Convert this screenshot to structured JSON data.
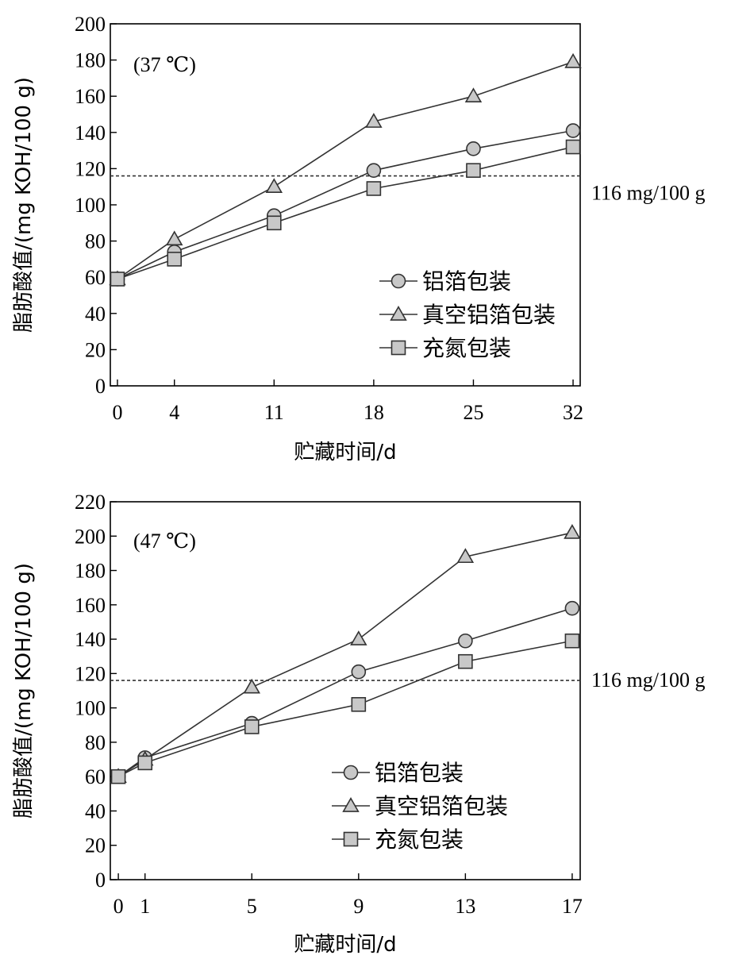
{
  "chart_data": [
    {
      "type": "line",
      "annotation": "(37 ℃)",
      "xlabel": "贮藏时间/d",
      "ylabel": "脂肪酸值/(mg KOH/100 g)",
      "xlim": [
        -0.5,
        32.5
      ],
      "ylim": [
        0,
        200
      ],
      "x": [
        0,
        4,
        11,
        18,
        25,
        32
      ],
      "x_ticks": [
        0,
        4,
        11,
        18,
        25,
        32
      ],
      "y_ticks": [
        0,
        20,
        40,
        60,
        80,
        100,
        120,
        140,
        160,
        180,
        200
      ],
      "reference_line": {
        "value": 116,
        "label": "116 mg/100 g"
      },
      "legend_position": "lower-right",
      "series": [
        {
          "name": "铝箔包装",
          "marker": "circle",
          "values": [
            59,
            74,
            94,
            119,
            131,
            141
          ]
        },
        {
          "name": "真空铝箔包装",
          "marker": "triangle",
          "values": [
            59,
            81,
            110,
            146,
            160,
            179
          ]
        },
        {
          "name": "充氮包装",
          "marker": "square",
          "values": [
            59,
            70,
            90,
            109,
            119,
            132
          ]
        }
      ]
    },
    {
      "type": "line",
      "annotation": "(47 ℃)",
      "xlabel": "贮藏时间/d",
      "ylabel": "脂肪酸值/(mg KOH/100 g)",
      "xlim": [
        -0.3,
        17.3
      ],
      "ylim": [
        0,
        220
      ],
      "x": [
        0,
        1,
        5,
        9,
        13,
        17
      ],
      "x_ticks": [
        0,
        1,
        5,
        9,
        13,
        17
      ],
      "y_ticks": [
        0,
        20,
        40,
        60,
        80,
        100,
        120,
        140,
        160,
        180,
        200,
        220
      ],
      "reference_line": {
        "value": 116,
        "label": "116 mg/100 g"
      },
      "legend_position": "lower-right",
      "series": [
        {
          "name": "铝箔包装",
          "marker": "circle",
          "values": [
            60,
            71,
            91,
            121,
            139,
            158
          ]
        },
        {
          "name": "真空铝箔包装",
          "marker": "triangle",
          "values": [
            60,
            70,
            112,
            140,
            188,
            202
          ]
        },
        {
          "name": "充氮包装",
          "marker": "square",
          "values": [
            60,
            68,
            89,
            102,
            127,
            139
          ]
        }
      ]
    }
  ]
}
